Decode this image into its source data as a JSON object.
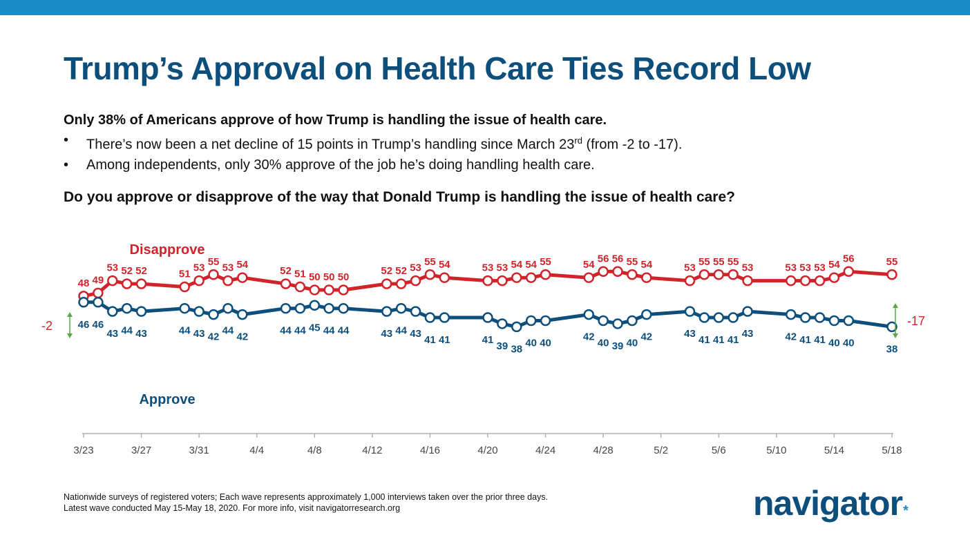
{
  "page": {
    "title": "Trump’s Approval on Health Care Ties Record Low",
    "summary_lead": "Only 38% of Americans approve of how Trump is handling the issue of health care.",
    "bullets": [
      {
        "before": "There’s now been a net decline of 15 points in Trump’s handling since March 23",
        "sup": "rd",
        "after": " (from -2 to -17)."
      },
      {
        "before": "Among independents, only 30% approve of the job he’s doing handling health care.",
        "sup": "",
        "after": ""
      }
    ],
    "question": "Do you approve or disapprove of the way that Donald Trump is handling the issue of health care?",
    "footnote_line1": "Nationwide surveys of registered voters; Each wave represents approximately 1,000 interviews taken over the prior three days.",
    "footnote_line2": "Latest wave conducted May 15-May 18, 2020. For more info, visit navigatorresearch.org",
    "logo_text": "navigator",
    "logo_mark": "*"
  },
  "chart_data": {
    "type": "line",
    "x_ticks": [
      "3/23",
      "3/27",
      "3/31",
      "4/4",
      "4/8",
      "4/12",
      "4/16",
      "4/20",
      "4/24",
      "4/28",
      "5/2",
      "5/6",
      "5/10",
      "5/14",
      "5/18"
    ],
    "x": [
      "3/23",
      "3/24",
      "3/25",
      "3/26",
      "3/27",
      "3/30",
      "3/31",
      "4/1",
      "4/2",
      "4/3",
      "4/6",
      "4/7",
      "4/8",
      "4/9",
      "4/10",
      "4/13",
      "4/14",
      "4/15",
      "4/16",
      "4/17",
      "4/20",
      "4/21",
      "4/22",
      "4/23",
      "4/24",
      "4/27",
      "4/28",
      "4/29",
      "4/30",
      "5/1",
      "5/4",
      "5/5",
      "5/6",
      "5/7",
      "5/8",
      "5/11",
      "5/12",
      "5/13",
      "5/14",
      "5/15",
      "5/18"
    ],
    "series": [
      {
        "name": "Disapprove",
        "color": "#d0232a",
        "values": [
          48,
          49,
          53,
          52,
          52,
          51,
          53,
          55,
          53,
          54,
          52,
          51,
          50,
          50,
          50,
          52,
          52,
          53,
          55,
          54,
          53,
          53,
          54,
          54,
          55,
          54,
          56,
          56,
          55,
          54,
          53,
          55,
          55,
          55,
          53,
          53,
          53,
          53,
          54,
          56,
          55
        ]
      },
      {
        "name": "Approve",
        "color": "#0d4f7c",
        "values": [
          46,
          46,
          43,
          44,
          43,
          44,
          43,
          42,
          44,
          42,
          44,
          44,
          45,
          44,
          44,
          43,
          44,
          43,
          41,
          41,
          41,
          39,
          38,
          40,
          40,
          42,
          40,
          39,
          40,
          42,
          43,
          41,
          41,
          41,
          43,
          42,
          41,
          41,
          40,
          40,
          38
        ]
      }
    ],
    "net_labels": {
      "start": "-2",
      "end": "-17"
    },
    "net_color": "#5aa844",
    "axis_color": "#b0b0b0",
    "ylim": [
      30,
      60
    ]
  }
}
